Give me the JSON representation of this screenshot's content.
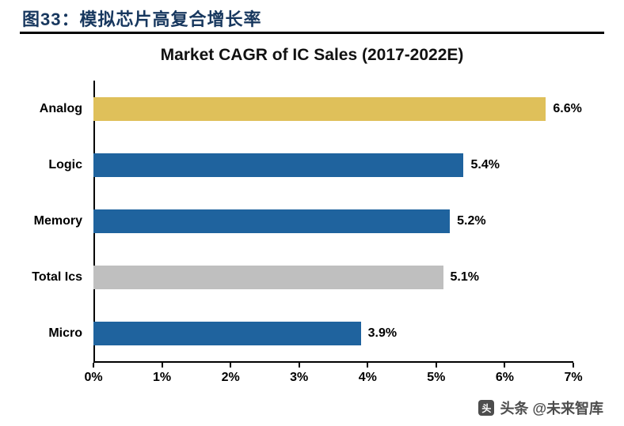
{
  "header": {
    "figure_label": "图33：",
    "figure_title": "模拟芯片高复合增长率"
  },
  "chart_data": {
    "type": "bar",
    "orientation": "horizontal",
    "title": "Market CAGR of IC Sales (2017-2022E)",
    "categories": [
      "Analog",
      "Logic",
      "Memory",
      "Total Ics",
      "Micro"
    ],
    "values": [
      6.6,
      5.4,
      5.2,
      5.1,
      3.9
    ],
    "value_labels": [
      "6.6%",
      "5.4%",
      "5.2%",
      "5.1%",
      "3.9%"
    ],
    "bar_colors": [
      "#DFC05A",
      "#1F639E",
      "#1F639E",
      "#BFBFBF",
      "#1F639E"
    ],
    "x_ticks": [
      "0%",
      "1%",
      "2%",
      "3%",
      "4%",
      "5%",
      "6%",
      "7%"
    ],
    "xlim": [
      0,
      7
    ],
    "grid": false,
    "legend": false
  },
  "watermark": {
    "logo_text": "头",
    "text": "头条 @未来智库"
  },
  "colors": {
    "header_text": "#17375E",
    "header_rule": "#000000",
    "bar_blue": "#1F639E",
    "bar_gold": "#DFC05A",
    "bar_gray": "#BFBFBF",
    "axis": "#000000",
    "watermark_text": "#4d4d4d"
  }
}
